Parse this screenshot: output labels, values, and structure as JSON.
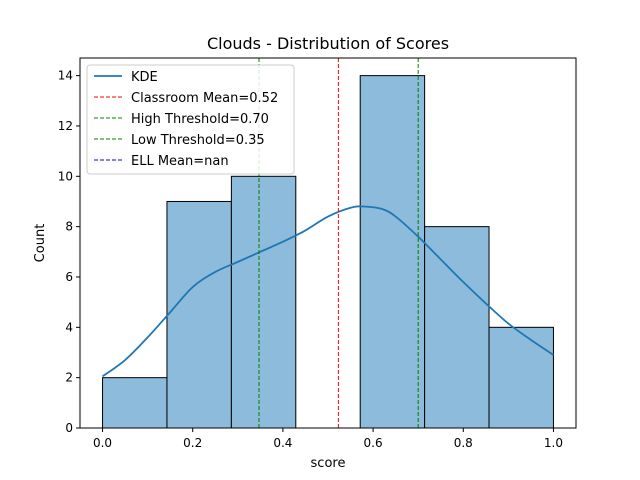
{
  "chart_data": {
    "type": "bar",
    "title": "Clouds - Distribution of Scores",
    "xlabel": "score",
    "ylabel": "Count",
    "xlim": [
      -0.05,
      1.05
    ],
    "ylim": [
      0,
      14.7
    ],
    "x_ticks": [
      0.0,
      0.2,
      0.4,
      0.6,
      0.8,
      1.0
    ],
    "x_tick_labels": [
      "0.0",
      "0.2",
      "0.4",
      "0.6",
      "0.8",
      "1.0"
    ],
    "y_ticks": [
      0,
      2,
      4,
      6,
      8,
      10,
      12,
      14
    ],
    "y_tick_labels": [
      "0",
      "2",
      "4",
      "6",
      "8",
      "10",
      "12",
      "14"
    ],
    "grid": false,
    "legend_position": "top-left",
    "histogram": {
      "bin_edges": [
        0.0,
        0.142857,
        0.285714,
        0.428571,
        0.571429,
        0.714286,
        0.857143,
        1.0
      ],
      "counts": [
        2,
        9,
        10,
        0,
        14,
        8,
        4
      ],
      "fill_color": "#8dbbdc",
      "edge_color": "#000000"
    },
    "kde": {
      "name": "KDE",
      "color": "#1f77b4",
      "x": [
        0.0,
        0.05,
        0.1,
        0.15,
        0.2,
        0.25,
        0.3,
        0.35,
        0.4,
        0.45,
        0.5,
        0.55,
        0.58,
        0.62,
        0.65,
        0.7,
        0.75,
        0.8,
        0.85,
        0.9,
        0.95,
        1.0
      ],
      "y": [
        2.05,
        2.7,
        3.6,
        4.6,
        5.6,
        6.2,
        6.6,
        7.0,
        7.4,
        7.85,
        8.4,
        8.75,
        8.8,
        8.7,
        8.4,
        7.6,
        6.7,
        5.8,
        4.95,
        4.15,
        3.5,
        2.9
      ]
    },
    "vlines": [
      {
        "name": "Classroom Mean=0.52",
        "x": 0.523,
        "color": "#ff0000"
      },
      {
        "name": "High Threshold=0.70",
        "x": 0.7,
        "color": "#008000"
      },
      {
        "name": "Low Threshold=0.35",
        "x": 0.347,
        "color": "#008000"
      },
      {
        "name": "ELL Mean=nan",
        "x": null,
        "color": "#0000ff"
      }
    ]
  }
}
